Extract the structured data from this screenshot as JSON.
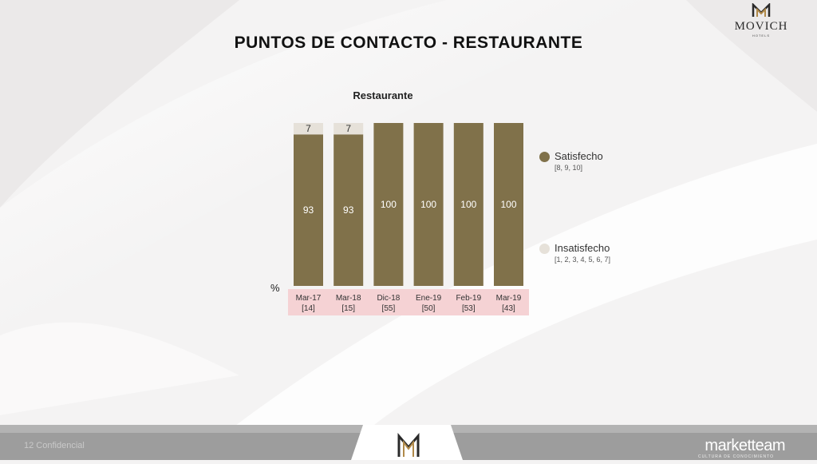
{
  "page": {
    "title": "PUNTOS DE CONTACTO - RESTAURANTE",
    "logo_text": "MOVICH",
    "logo_subtext": "HOTELS",
    "footer_left": "12     Confidencial",
    "footer_brand": "marketteam",
    "footer_brand_sub": "CULTURA DE CONOCIMIENTO"
  },
  "colors": {
    "satisfied": "#80714a",
    "unsatisfied": "#e6e1d9",
    "label_band": "#f5d2d4",
    "footer_band": "#9d9d9d"
  },
  "chart_data": {
    "type": "bar",
    "stacked": true,
    "title": "Restaurante",
    "ylabel": "%",
    "ylim": [
      0,
      100
    ],
    "categories": [
      "Mar-17",
      "Mar-18",
      "Dic-18",
      "Ene-19",
      "Feb-19",
      "Mar-19"
    ],
    "base_sizes": [
      "[14]",
      "[15]",
      "[55]",
      "[50]",
      "[53]",
      "[43]"
    ],
    "series": [
      {
        "name": "Satisfecho",
        "sublabel": "[8, 9, 10]",
        "values": [
          93,
          93,
          100,
          100,
          100,
          100
        ]
      },
      {
        "name": "Insatisfecho",
        "sublabel": "[1, 2, 3, 4, 5, 6, 7]",
        "values": [
          7,
          7,
          0,
          0,
          0,
          0
        ]
      }
    ]
  }
}
